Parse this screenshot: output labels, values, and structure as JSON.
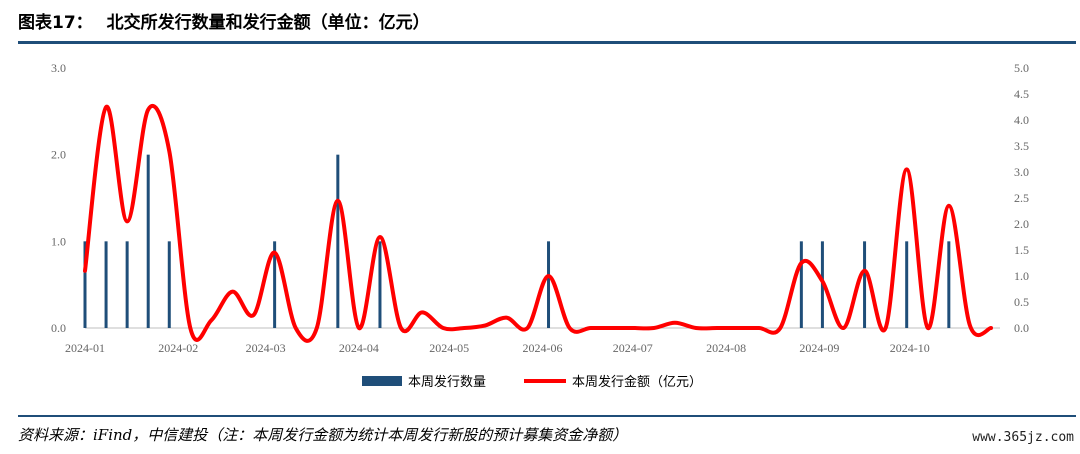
{
  "header": {
    "figure_label": "图表17：",
    "title": "北交所发行数量和发行金额（单位：亿元）"
  },
  "footer": {
    "source": "资料来源：iFind，中信建投（注：本周发行金额为统计本周发行新股的预计募集资金净额）",
    "watermark": "www.365jz.com"
  },
  "colors": {
    "bar": "#1f4e79",
    "line": "#ff0000",
    "rule": "#1f4e79"
  },
  "chart_data": {
    "type": "bar+line",
    "x_axis": {
      "type": "date",
      "range": [
        "2024-01-01",
        "2024-10-31"
      ],
      "tick_labels": [
        "2024-01",
        "2024-02",
        "2024-03",
        "2024-04",
        "2024-05",
        "2024-06",
        "2024-07",
        "2024-08",
        "2024-09",
        "2024-10"
      ]
    },
    "y_left": {
      "min": 0,
      "max": 3,
      "ticks": [
        "0.0",
        "1.0",
        "2.0",
        "3.0"
      ]
    },
    "y_right": {
      "min": 0,
      "max": 5,
      "ticks": [
        "0.0",
        "0.5",
        "1.0",
        "1.5",
        "2.0",
        "2.5",
        "3.0",
        "3.5",
        "4.0",
        "4.5",
        "5.0"
      ]
    },
    "legend": [
      "本周发行数量",
      "本周发行金额（亿元）"
    ],
    "legend_position": "bottom",
    "series": [
      {
        "name": "本周发行数量",
        "type": "bar",
        "axis": "left",
        "points": [
          [
            "2024-01-01",
            1
          ],
          [
            "2024-01-08",
            1
          ],
          [
            "2024-01-15",
            1
          ],
          [
            "2024-01-22",
            2
          ],
          [
            "2024-01-29",
            1
          ],
          [
            "2024-03-04",
            1
          ],
          [
            "2024-03-25",
            2
          ],
          [
            "2024-04-08",
            1
          ],
          [
            "2024-06-03",
            1
          ],
          [
            "2024-08-26",
            1
          ],
          [
            "2024-09-02",
            1
          ],
          [
            "2024-09-16",
            1
          ],
          [
            "2024-09-30",
            1
          ],
          [
            "2024-10-14",
            1
          ]
        ]
      },
      {
        "name": "本周发行金额（亿元）",
        "type": "line",
        "axis": "right",
        "points": [
          [
            "2024-01-01",
            1.1
          ],
          [
            "2024-01-08",
            4.25
          ],
          [
            "2024-01-15",
            2.05
          ],
          [
            "2024-01-22",
            4.2
          ],
          [
            "2024-01-29",
            3.4
          ],
          [
            "2024-02-05",
            0.0
          ],
          [
            "2024-02-12",
            0.15
          ],
          [
            "2024-02-19",
            0.7
          ],
          [
            "2024-02-26",
            0.25
          ],
          [
            "2024-03-04",
            1.45
          ],
          [
            "2024-03-11",
            0.0
          ],
          [
            "2024-03-18",
            0.0
          ],
          [
            "2024-03-25",
            2.45
          ],
          [
            "2024-04-01",
            0.0
          ],
          [
            "2024-04-08",
            1.75
          ],
          [
            "2024-04-15",
            0.0
          ],
          [
            "2024-04-22",
            0.3
          ],
          [
            "2024-04-29",
            0.0
          ],
          [
            "2024-05-06",
            0.0
          ],
          [
            "2024-05-13",
            0.05
          ],
          [
            "2024-05-20",
            0.2
          ],
          [
            "2024-05-27",
            0.0
          ],
          [
            "2024-06-03",
            1.0
          ],
          [
            "2024-06-10",
            0.0
          ],
          [
            "2024-06-17",
            0.0
          ],
          [
            "2024-06-24",
            0.0
          ],
          [
            "2024-07-01",
            0.0
          ],
          [
            "2024-07-08",
            0.0
          ],
          [
            "2024-07-15",
            0.1
          ],
          [
            "2024-07-22",
            0.0
          ],
          [
            "2024-07-29",
            0.0
          ],
          [
            "2024-08-05",
            0.0
          ],
          [
            "2024-08-12",
            0.0
          ],
          [
            "2024-08-19",
            0.0
          ],
          [
            "2024-08-26",
            1.25
          ],
          [
            "2024-09-02",
            0.9
          ],
          [
            "2024-09-09",
            0.0
          ],
          [
            "2024-09-16",
            1.1
          ],
          [
            "2024-09-23",
            0.0
          ],
          [
            "2024-09-30",
            3.05
          ],
          [
            "2024-10-07",
            0.0
          ],
          [
            "2024-10-14",
            2.35
          ],
          [
            "2024-10-21",
            0.05
          ],
          [
            "2024-10-28",
            0.0
          ]
        ]
      }
    ]
  }
}
